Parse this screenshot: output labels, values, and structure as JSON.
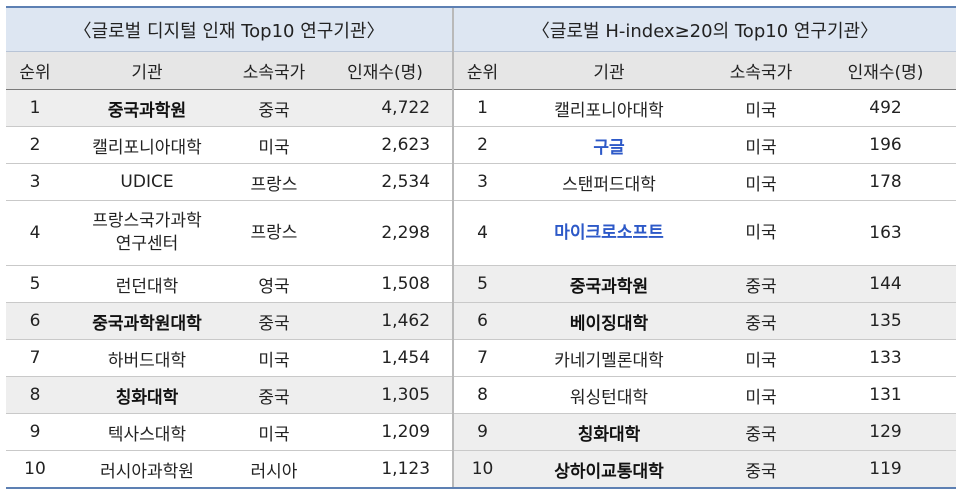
{
  "left": {
    "title": "〈글로벌 디지털 인재 Top10 연구기관〉",
    "headers": [
      "순위",
      "기관",
      "소속국가",
      "인재수(명)"
    ],
    "rows": [
      {
        "rank": "1",
        "inst": "중국과학원",
        "country": "중국",
        "count": "4,722",
        "style": "bold"
      },
      {
        "rank": "2",
        "inst": "캘리포니아대학",
        "country": "미국",
        "count": "2,623",
        "style": ""
      },
      {
        "rank": "3",
        "inst": "UDICE",
        "country": "프랑스",
        "count": "2,534",
        "style": ""
      },
      {
        "rank": "4",
        "inst": "프랑스국가과학 연구센터",
        "country": "프랑스",
        "count": "2,298",
        "style": ""
      },
      {
        "rank": "5",
        "inst": "런던대학",
        "country": "영국",
        "count": "1,508",
        "style": ""
      },
      {
        "rank": "6",
        "inst": "중국과학원대학",
        "country": "중국",
        "count": "1,462",
        "style": "bold"
      },
      {
        "rank": "7",
        "inst": "하버드대학",
        "country": "미국",
        "count": "1,454",
        "style": ""
      },
      {
        "rank": "8",
        "inst": "칭화대학",
        "country": "중국",
        "count": "1,305",
        "style": "bold"
      },
      {
        "rank": "9",
        "inst": "텍사스대학",
        "country": "미국",
        "count": "1,209",
        "style": ""
      },
      {
        "rank": "10",
        "inst": "러시아과학원",
        "country": "러시아",
        "count": "1,123",
        "style": ""
      }
    ]
  },
  "right": {
    "title": "〈글로벌 H-index≥20의 Top10 연구기관〉",
    "headers": [
      "순위",
      "기관",
      "소속국가",
      "인재수(명)"
    ],
    "rows": [
      {
        "rank": "1",
        "inst": "캘리포니아대학",
        "country": "미국",
        "count": "492",
        "style": ""
      },
      {
        "rank": "2",
        "inst": "구글",
        "country": "미국",
        "count": "196",
        "style": "blue"
      },
      {
        "rank": "3",
        "inst": "스탠퍼드대학",
        "country": "미국",
        "count": "178",
        "style": ""
      },
      {
        "rank": "4",
        "inst": "마이크로소프트",
        "country": "미국",
        "count": "163",
        "style": "blue"
      },
      {
        "rank": "5",
        "inst": "중국과학원",
        "country": "중국",
        "count": "144",
        "style": "bold"
      },
      {
        "rank": "6",
        "inst": "베이징대학",
        "country": "중국",
        "count": "135",
        "style": "bold"
      },
      {
        "rank": "7",
        "inst": "카네기멜론대학",
        "country": "미국",
        "count": "133",
        "style": ""
      },
      {
        "rank": "8",
        "inst": "워싱턴대학",
        "country": "미국",
        "count": "131",
        "style": ""
      },
      {
        "rank": "9",
        "inst": "칭화대학",
        "country": "중국",
        "count": "129",
        "style": "bold"
      },
      {
        "rank": "10",
        "inst": "상하이교통대학",
        "country": "중국",
        "count": "119",
        "style": "bold"
      }
    ]
  },
  "colors": {
    "title_bg": "#dde6f2",
    "header_bg": "#e6e6e6",
    "highlight_bg": "#eeeeee",
    "accent_blue": "#2d59c8",
    "rule_blue": "#5d80b3"
  }
}
